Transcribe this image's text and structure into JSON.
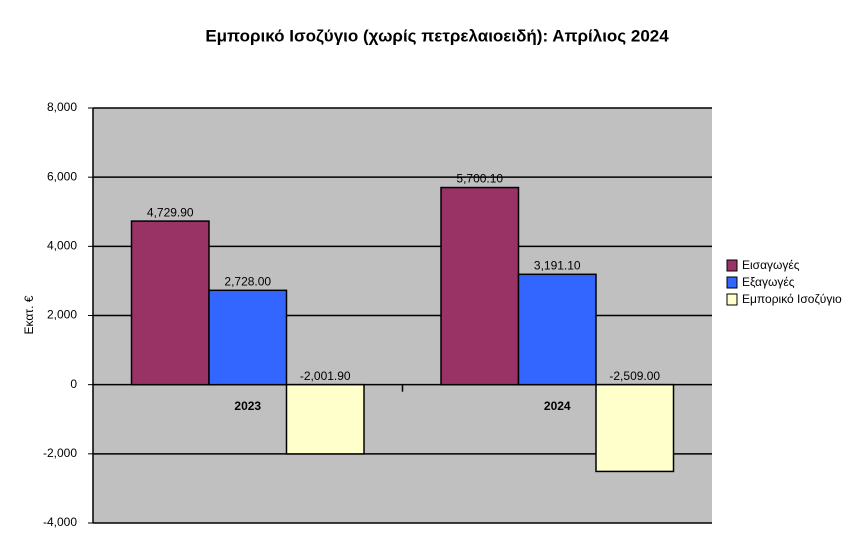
{
  "chart_data": {
    "type": "bar",
    "title": "Εμπορικό Ισοζύγιο (χωρίς πετρελαιοειδή): Απρίλιος 2024",
    "y_label": "Εκατ. €",
    "categories": [
      "2023",
      "2024"
    ],
    "series": [
      {
        "name": "Εισαγωγές",
        "color": "#993366",
        "values": [
          4729.9,
          5700.1
        ],
        "value_labels": [
          "4,729.90",
          "5,700.10"
        ]
      },
      {
        "name": "Εξαγωγές",
        "color": "#3366ff",
        "values": [
          2728.0,
          3191.1
        ],
        "value_labels": [
          "2,728.00",
          "3,191.10"
        ]
      },
      {
        "name": "Εμπορικό Ισοζύγιο",
        "color": "#ffffcc",
        "values": [
          -2001.9,
          -2509.0
        ],
        "value_labels": [
          "-2,001.90",
          "-2,509.00"
        ]
      }
    ],
    "ylim": [
      -4000,
      8000
    ],
    "yticks": [
      {
        "value": -4000,
        "label": "-4,000"
      },
      {
        "value": -2000,
        "label": "-2,000"
      },
      0,
      {
        "value": 2000,
        "label": "2,000"
      },
      {
        "value": 4000,
        "label": "4,000"
      },
      {
        "value": 6000,
        "label": "6,000"
      },
      {
        "value": 8000,
        "label": "8,000"
      }
    ],
    "grid": true,
    "legend": "right"
  }
}
